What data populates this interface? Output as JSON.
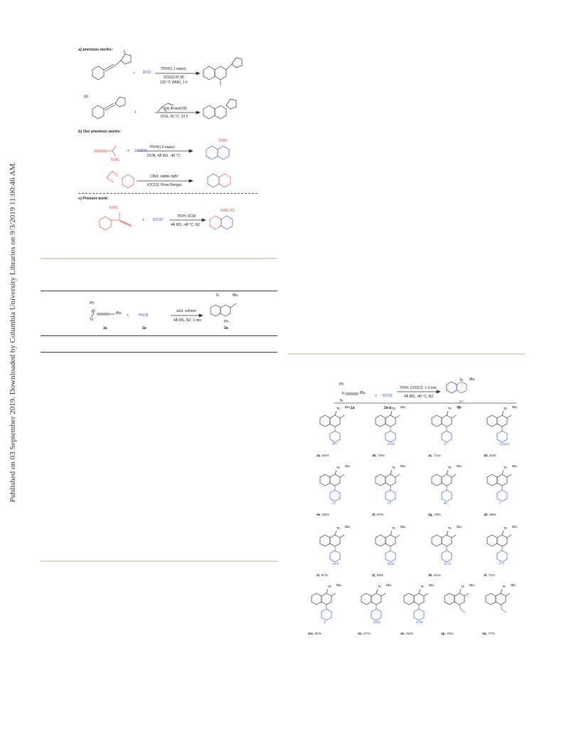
{
  "side_note": "Published on 03 September 2019. Downloaded by Columbia University Libraries on 9/3/2019 11:00:46 AM.",
  "scheme1": {
    "a_header": "a) previous works:",
    "a1": {
      "reagent": "RCN",
      "cond1": "TfOH(1.1 equiv)",
      "cond2": "DCE(0.05 M)",
      "cond3": "120 °C (MW), 1 h",
      "plus": "+"
    },
    "b_label": "(b)",
    "a2": {
      "cond1": "5% IPrAuNTf2",
      "cond2": "DCE, 60 °C, 22 h",
      "plus": "+"
    },
    "b_header": "b) Our previous works:",
    "b1": {
      "reagent": "2 R3CN",
      "cond1": "TfOH(1.6 equiv)",
      "cond2": "DCM, 4Å MS, -40 °C",
      "ewg_label": "EWG",
      "plus": "+"
    },
    "b2": {
      "cond1": "CBr4, visible-light",
      "cond2": "K2CO3, Rose Bengal"
    },
    "c_header": "c) Present work:",
    "c1": {
      "reagent": "R2CN",
      "cond1": "TfOH, DCM",
      "cond2": "4Å MS, -40 °C, N2",
      "ewg": "EWG",
      "ewg_r": "EWG R3",
      "plus": "+"
    }
  },
  "table1": {
    "reactant1": "1a",
    "reactant2": "2a",
    "product": "3a",
    "reagent2": "PhCN",
    "cond1": "acid, solvent",
    "cond2": "4Å MS, N2, 1 min",
    "plus": "+",
    "sub_ph": "Ph",
    "sub_ts": "Ts",
    "sub_tbu": "tBu"
  },
  "table2": {
    "reactant1": "1a",
    "reactant2": "2a-q",
    "product": "3",
    "reagent2": "R1CN",
    "cond1": "TfOH, CH2Cl2, 1-3 min",
    "cond2": "4Å MS, -40 °C, N2",
    "plus": "+",
    "products": [
      {
        "id": "3a",
        "yield": "92%",
        "sub": "Ph"
      },
      {
        "id": "3b",
        "yield": "78%",
        "sub": "CH3"
      },
      {
        "id": "3c",
        "yield": "71%",
        "sub": "O"
      },
      {
        "id": "3d",
        "yield": "83%",
        "sub": "CH2Cl"
      },
      {
        "id": "3e",
        "yield": "93%",
        "sub": "Cl"
      },
      {
        "id": "3f",
        "yield": "87%",
        "sub": "Cl"
      },
      {
        "id": "3g",
        "yield": "79%",
        "sub": "Br"
      },
      {
        "id": "3h",
        "yield": "88%",
        "sub": "F"
      },
      {
        "id": "3i",
        "yield": "87%",
        "sub": "CF3"
      },
      {
        "id": "3j",
        "yield": "58%",
        "sub": "NO2"
      },
      {
        "id": "3k",
        "yield": "81%",
        "sub": "Cl  Cl"
      },
      {
        "id": "3l",
        "yield": "71%",
        "sub": "F  F"
      },
      {
        "id": "3m",
        "yield": "80%",
        "sub": "S"
      },
      {
        "id": "3n",
        "yield": "67%",
        "sub": "NO2"
      },
      {
        "id": "3o",
        "yield": "62%",
        "sub": "CH3"
      },
      {
        "id": "3p",
        "yield": "75%",
        "sub": ""
      },
      {
        "id": "3q",
        "yield": "77%",
        "sub": ""
      }
    ]
  },
  "colors": {
    "blue": "#3a5bd0",
    "red": "#e0504a",
    "olive_rule": "#d8d6c4"
  }
}
